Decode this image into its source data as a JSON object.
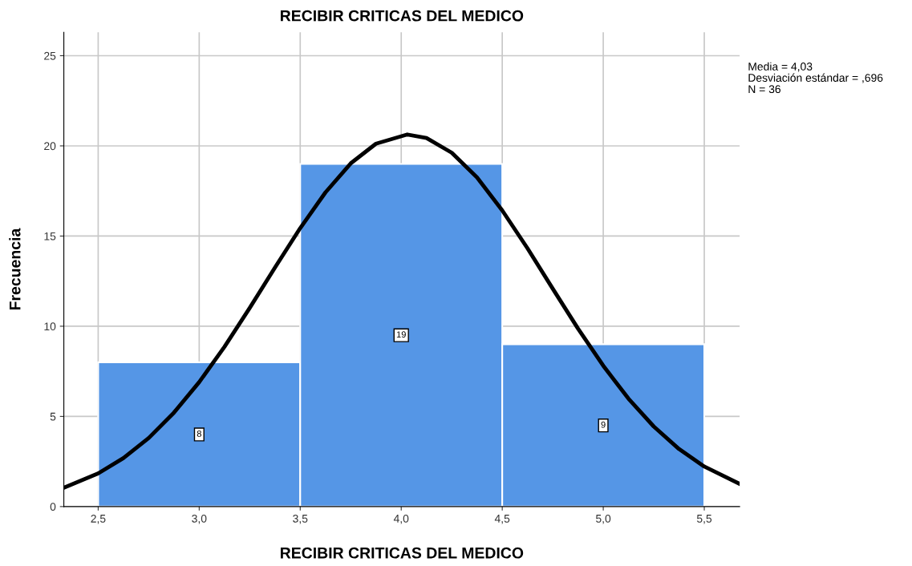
{
  "chart_data": {
    "type": "histogram",
    "title": "RECIBIR CRITICAS DEL MEDICO",
    "xlabel": "RECIBIR CRITICAS DEL MEDICO",
    "ylabel": "Frecuencia",
    "bins": [
      2.5,
      3.5,
      4.5,
      5.5
    ],
    "values": [
      8,
      19,
      9
    ],
    "color": "#5596e6",
    "value_labels": [
      "8",
      "19",
      "9"
    ],
    "series": [
      {
        "type": "line",
        "color": "#000000",
        "x": [
          2.33,
          2.5,
          2.625,
          2.75,
          2.875,
          3.0,
          3.125,
          3.25,
          3.375,
          3.5,
          3.625,
          3.75,
          3.875,
          4.03,
          4.125,
          4.25,
          4.375,
          4.5,
          4.625,
          4.75,
          4.875,
          5.0,
          5.125,
          5.25,
          5.375,
          5.5,
          5.675
        ],
        "values": [
          1.04,
          1.84,
          2.69,
          3.8,
          5.21,
          6.9,
          8.86,
          11.01,
          13.25,
          15.44,
          17.42,
          19.03,
          20.12,
          20.63,
          20.44,
          19.62,
          18.25,
          16.42,
          14.32,
          12.08,
          9.87,
          7.81,
          5.98,
          4.44,
          3.19,
          2.22,
          1.26
        ]
      }
    ],
    "xlim": [
      2.33,
      5.675
    ],
    "xticks": [
      {
        "value": 2.5,
        "label": "2,5"
      },
      {
        "value": 3.0,
        "label": "3,0"
      },
      {
        "value": 3.5,
        "label": "3,5"
      },
      {
        "value": 4.0,
        "label": "4,0"
      },
      {
        "value": 4.5,
        "label": "4,5"
      },
      {
        "value": 5.0,
        "label": "5,0"
      },
      {
        "value": 5.5,
        "label": "5,5"
      }
    ],
    "ylim": [
      0,
      26.3
    ],
    "yticks": [
      0,
      5,
      10,
      15,
      20,
      25
    ],
    "grid": true,
    "annotations": [
      "Media = 4,03",
      "Desviación estándar = ,696",
      "N = 36"
    ]
  }
}
